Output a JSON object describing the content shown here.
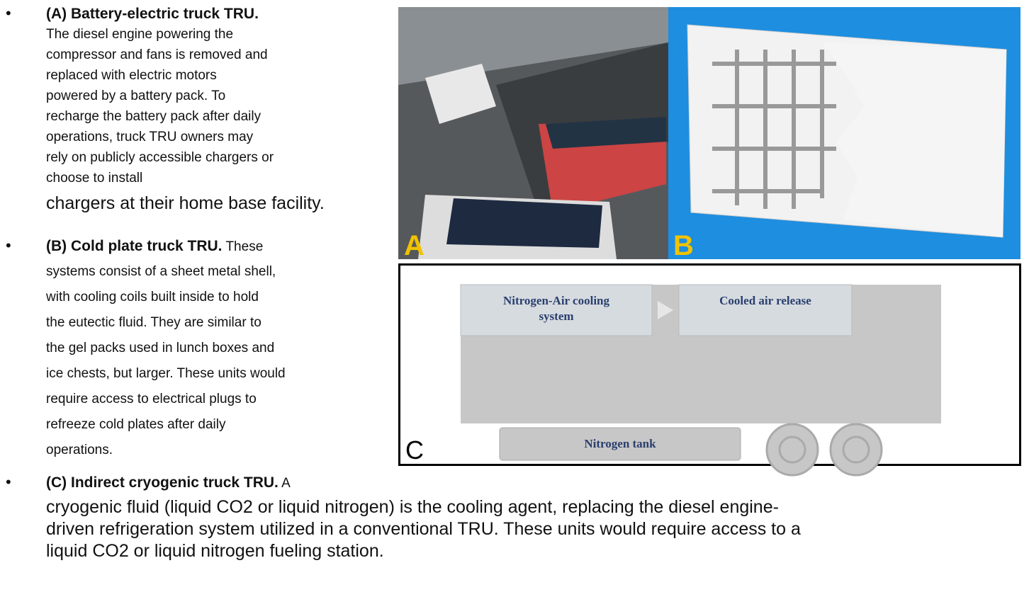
{
  "bullets": [
    {
      "title": "(A) Battery-electric truck TRU.",
      "lines": [
        "The diesel engine powering the",
        "compressor and fans is removed and",
        "replaced with electric motors",
        "powered by a battery pack. To",
        "recharge the battery pack after daily",
        "operations, truck TRU owners may",
        "rely on publicly accessible chargers or",
        "choose to install",
        "chargers at their home base facility."
      ]
    },
    {
      "title": "(B) Cold plate truck TRU.",
      "lead": "These",
      "lines": [
        "systems consist of a sheet metal shell,",
        "with cooling coils built inside to hold",
        "the eutectic fluid. They are similar to",
        "the gel packs used in lunch boxes and",
        "ice chests, but larger. These units would",
        "require access to electrical plugs to",
        "refreeze cold plates after daily",
        "operations."
      ]
    },
    {
      "title": "(C) Indirect cryogenic truck TRU.",
      "lead": "A",
      "lines": [
        "cryogenic fluid (liquid CO2 or liquid nitrogen) is the cooling agent, replacing the diesel engine-",
        "driven refrigeration system utilized in a conventional TRU. These units would require access to a",
        "liquid CO2 or liquid nitrogen fueling station."
      ]
    }
  ],
  "figures": {
    "a_label": "A",
    "b_label": "B",
    "c_label": "C",
    "c_boxes": [
      "Nitrogen-Air cooling system",
      "Cooled air release",
      "Nitrogen tank"
    ]
  }
}
